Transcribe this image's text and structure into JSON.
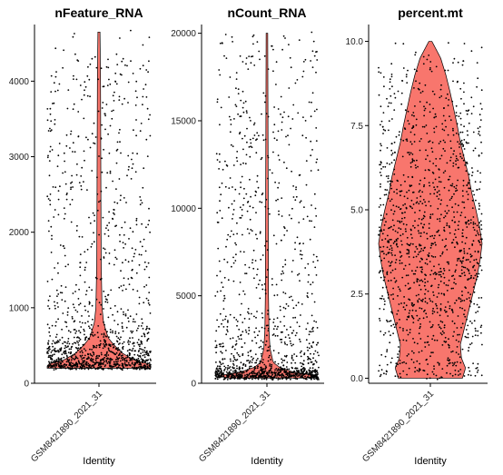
{
  "chart_data": [
    {
      "type": "violin",
      "title": "nFeature_RNA",
      "xlabel": "Identity",
      "category": "GSM8421890_2021_31",
      "ylim": [
        0,
        4750
      ],
      "yticks": [
        0,
        1000,
        2000,
        3000,
        4000
      ],
      "fill": "#F8766D",
      "data_range": [
        200,
        4650
      ],
      "violin_profile": [
        [
          250,
          1.0
        ],
        [
          300,
          0.7
        ],
        [
          400,
          0.45
        ],
        [
          500,
          0.3
        ],
        [
          600,
          0.18
        ],
        [
          800,
          0.09
        ],
        [
          1000,
          0.06
        ],
        [
          1500,
          0.045
        ],
        [
          2000,
          0.04
        ],
        [
          3000,
          0.035
        ],
        [
          4000,
          0.03
        ],
        [
          4650,
          0.02
        ]
      ]
    },
    {
      "type": "violin",
      "title": "nCount_RNA",
      "xlabel": "Identity",
      "category": "GSM8421890_2021_31",
      "ylim": [
        0,
        20500
      ],
      "yticks": [
        0,
        5000,
        10000,
        15000,
        20000
      ],
      "fill": "#F8766D",
      "data_range": [
        300,
        20000
      ],
      "violin_profile": [
        [
          300,
          0.75
        ],
        [
          450,
          1.0
        ],
        [
          600,
          0.55
        ],
        [
          900,
          0.25
        ],
        [
          1200,
          0.12
        ],
        [
          2000,
          0.06
        ],
        [
          3000,
          0.04
        ],
        [
          5000,
          0.03
        ],
        [
          10000,
          0.025
        ],
        [
          15000,
          0.02
        ],
        [
          20000,
          0.015
        ]
      ]
    },
    {
      "type": "violin",
      "title": "percent.mt",
      "xlabel": "Identity",
      "category": "GSM8421890_2021_31",
      "ylim": [
        -0.15,
        10.5
      ],
      "yticks": [
        0.0,
        2.5,
        5.0,
        7.5,
        10.0
      ],
      "fill": "#F8766D",
      "data_range": [
        0,
        10
      ],
      "violin_profile": [
        [
          0.0,
          0.62
        ],
        [
          0.3,
          0.68
        ],
        [
          0.6,
          0.6
        ],
        [
          1.0,
          0.58
        ],
        [
          1.5,
          0.66
        ],
        [
          2.0,
          0.74
        ],
        [
          2.5,
          0.82
        ],
        [
          3.0,
          0.9
        ],
        [
          3.5,
          0.96
        ],
        [
          4.0,
          1.0
        ],
        [
          4.5,
          0.95
        ],
        [
          5.0,
          0.88
        ],
        [
          5.5,
          0.8
        ],
        [
          6.0,
          0.74
        ],
        [
          6.5,
          0.66
        ],
        [
          7.0,
          0.58
        ],
        [
          7.5,
          0.52
        ],
        [
          8.0,
          0.45
        ],
        [
          8.5,
          0.38
        ],
        [
          9.0,
          0.3
        ],
        [
          9.5,
          0.2
        ],
        [
          10.0,
          0.03
        ]
      ]
    }
  ]
}
